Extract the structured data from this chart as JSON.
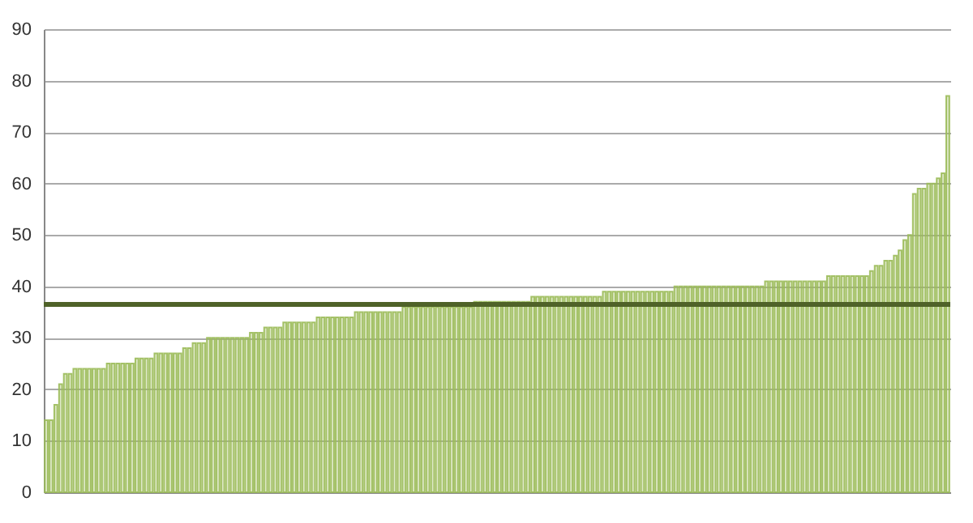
{
  "chart_data": {
    "type": "bar",
    "categories": [
      null,
      null,
      null,
      null,
      null,
      null,
      null,
      null,
      null,
      null,
      null,
      null,
      null,
      null,
      null,
      null,
      null,
      null,
      null,
      null,
      null,
      null,
      null,
      null,
      null,
      null,
      null,
      null,
      null,
      null,
      null,
      null,
      null,
      null,
      null,
      null,
      null,
      null,
      null,
      null,
      null,
      null,
      null,
      null,
      null,
      null,
      null,
      null,
      null,
      null,
      null,
      null,
      null,
      null,
      null,
      null,
      null,
      null,
      null,
      null,
      null,
      null,
      null,
      null,
      null,
      null,
      null,
      null,
      null,
      null,
      null,
      null,
      null,
      null,
      null,
      null,
      null,
      null,
      null,
      null,
      null,
      null,
      null,
      null,
      null,
      null,
      null,
      null,
      null,
      null,
      null,
      null,
      null,
      null,
      null,
      null,
      null,
      null,
      null,
      null,
      null,
      null,
      null,
      null,
      null,
      null,
      null,
      null,
      null,
      null,
      null,
      null,
      null,
      null,
      null,
      null,
      null,
      null,
      null,
      null,
      null,
      null,
      null,
      null,
      null,
      null,
      null,
      null,
      null,
      null,
      null,
      null,
      null,
      null,
      null,
      null,
      null,
      null,
      null,
      null,
      null,
      null,
      null,
      null,
      null,
      null,
      null,
      null,
      null,
      null,
      null,
      null,
      null,
      null,
      null,
      null,
      null,
      null,
      null,
      null,
      null,
      null,
      null,
      null,
      null,
      null,
      null,
      null,
      null,
      null,
      null,
      null,
      null,
      null,
      null,
      null,
      null,
      null,
      null,
      null,
      null,
      null,
      null,
      null,
      null,
      null,
      null,
      null,
      null,
      null
    ],
    "values": [
      14,
      14,
      17,
      21,
      23,
      23,
      24,
      24,
      24,
      24,
      24,
      24,
      24,
      25,
      25,
      25,
      25,
      25,
      25,
      26,
      26,
      26,
      26,
      27,
      27,
      27,
      27,
      27,
      27,
      28,
      28,
      29,
      29,
      29,
      30,
      30,
      30,
      30,
      30,
      30,
      30,
      30,
      30,
      31,
      31,
      31,
      32,
      32,
      32,
      32,
      33,
      33,
      33,
      33,
      33,
      33,
      33,
      34,
      34,
      34,
      34,
      34,
      34,
      34,
      34,
      35,
      35,
      35,
      35,
      35,
      35,
      35,
      35,
      35,
      35,
      36,
      36,
      36,
      36,
      36,
      36,
      36,
      36,
      36,
      36,
      36,
      36,
      36,
      36,
      36,
      37,
      37,
      37,
      37,
      37,
      37,
      37,
      37,
      37,
      37,
      37,
      37,
      38,
      38,
      38,
      38,
      38,
      38,
      38,
      38,
      38,
      38,
      38,
      38,
      38,
      38,
      38,
      39,
      39,
      39,
      39,
      39,
      39,
      39,
      39,
      39,
      39,
      39,
      39,
      39,
      39,
      39,
      40,
      40,
      40,
      40,
      40,
      40,
      40,
      40,
      40,
      40,
      40,
      40,
      40,
      40,
      40,
      40,
      40,
      40,
      40,
      41,
      41,
      41,
      41,
      41,
      41,
      41,
      41,
      41,
      41,
      41,
      41,
      41,
      42,
      42,
      42,
      42,
      42,
      42,
      42,
      42,
      42,
      43,
      44,
      44,
      45,
      45,
      46,
      47,
      49,
      50,
      58,
      59,
      59,
      60,
      60,
      61,
      62,
      77
    ],
    "color": "#9bbb59",
    "ylim": [
      0,
      90
    ],
    "yticks": [
      0,
      10,
      20,
      30,
      40,
      50,
      60,
      70,
      80,
      90
    ],
    "grid": "y",
    "ref_lines": [
      {
        "axis": "y",
        "value": 36.5,
        "color": "#4f6228",
        "line_style": "solid"
      }
    ]
  }
}
